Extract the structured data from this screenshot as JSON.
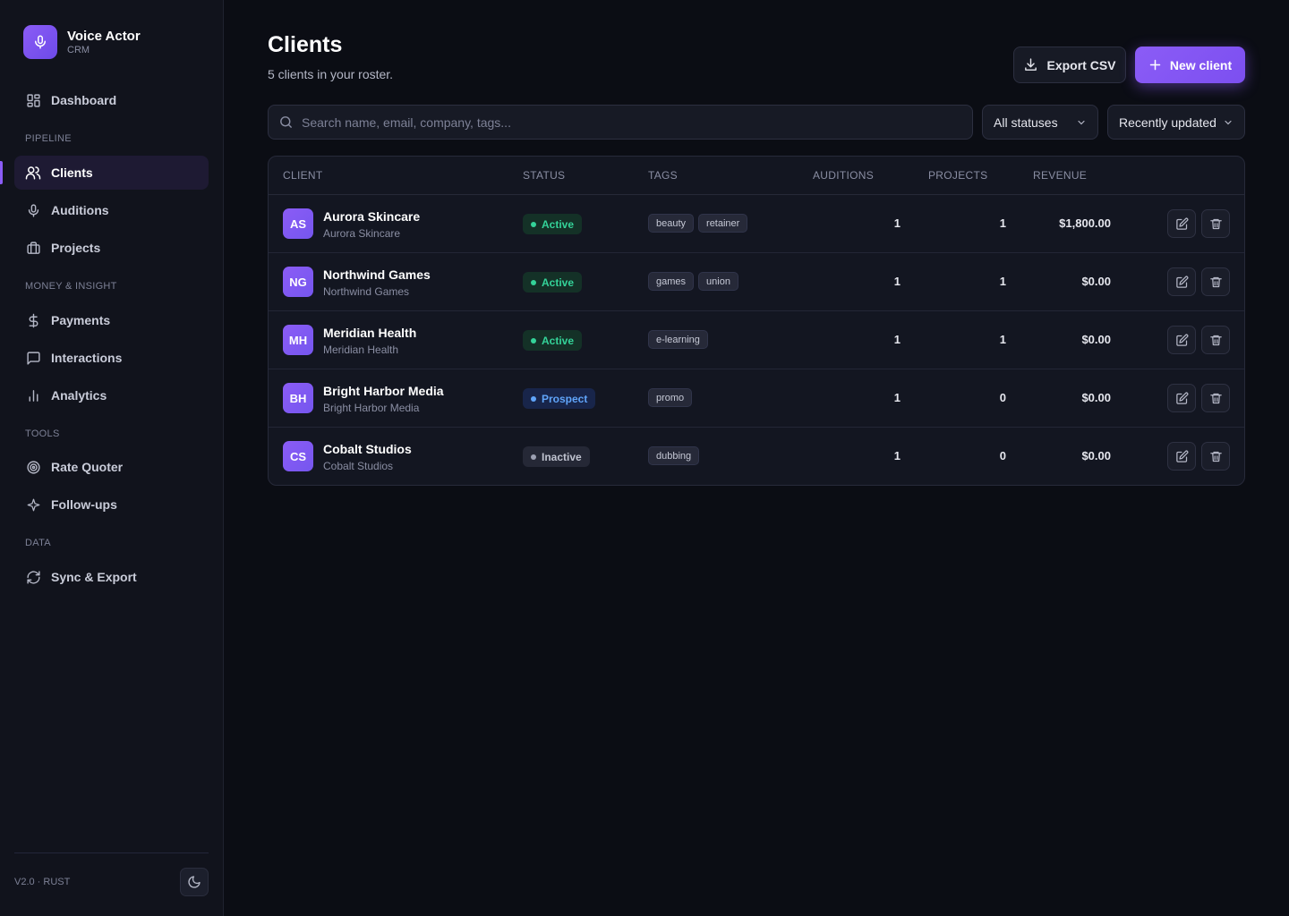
{
  "app": {
    "name": "Voice Actor",
    "subtitle": "CRM",
    "version": "V2.0 · RUST"
  },
  "sidebar": {
    "dashboard": "Dashboard",
    "sections": {
      "pipeline": "PIPELINE",
      "money": "MONEY & INSIGHT",
      "tools": "TOOLS",
      "data": "DATA"
    },
    "items": {
      "clients": "Clients",
      "auditions": "Auditions",
      "projects": "Projects",
      "payments": "Payments",
      "interactions": "Interactions",
      "analytics": "Analytics",
      "rate_quoter": "Rate Quoter",
      "follow_ups": "Follow-ups",
      "sync_export": "Sync & Export"
    },
    "active_item": "clients"
  },
  "page": {
    "title": "Clients",
    "subtitle": "5 clients in your roster.",
    "export_label": "Export CSV",
    "new_label": "New client"
  },
  "filters": {
    "search_placeholder": "Search name, email, company, tags...",
    "status_value": "All statuses",
    "sort_value": "Recently updated"
  },
  "table": {
    "headers": {
      "client": "CLIENT",
      "status": "STATUS",
      "tags": "TAGS",
      "auditions": "AUDITIONS",
      "projects": "PROJECTS",
      "revenue": "REVENUE"
    },
    "rows": [
      {
        "initials": "AS",
        "name": "Aurora Skincare",
        "company": "Aurora Skincare",
        "status": "Active",
        "status_kind": "active",
        "tags": [
          "beauty",
          "retainer"
        ],
        "auditions": "1",
        "projects": "1",
        "revenue": "$1,800.00"
      },
      {
        "initials": "NG",
        "name": "Northwind Games",
        "company": "Northwind Games",
        "status": "Active",
        "status_kind": "active",
        "tags": [
          "games",
          "union"
        ],
        "auditions": "1",
        "projects": "1",
        "revenue": "$0.00"
      },
      {
        "initials": "MH",
        "name": "Meridian Health",
        "company": "Meridian Health",
        "status": "Active",
        "status_kind": "active",
        "tags": [
          "e-learning"
        ],
        "auditions": "1",
        "projects": "1",
        "revenue": "$0.00"
      },
      {
        "initials": "BH",
        "name": "Bright Harbor Media",
        "company": "Bright Harbor Media",
        "status": "Prospect",
        "status_kind": "prospect",
        "tags": [
          "promo"
        ],
        "auditions": "1",
        "projects": "0",
        "revenue": "$0.00"
      },
      {
        "initials": "CS",
        "name": "Cobalt Studios",
        "company": "Cobalt Studios",
        "status": "Inactive",
        "status_kind": "inactive",
        "tags": [
          "dubbing"
        ],
        "auditions": "1",
        "projects": "0",
        "revenue": "$0.00"
      }
    ]
  },
  "colors": {
    "accent": "#8b5cf6",
    "background": "#0b0d14",
    "sidebar": "#11131c",
    "status_active": "#34d399",
    "status_prospect": "#60a5fa",
    "status_inactive": "#9ca0b2"
  },
  "icons": {
    "brand": "microphone-icon",
    "dashboard": "grid-icon",
    "clients": "users-icon",
    "auditions": "microphone-icon",
    "projects": "briefcase-icon",
    "payments": "dollar-icon",
    "interactions": "chat-icon",
    "analytics": "bar-chart-icon",
    "rate_quoter": "target-icon",
    "follow_ups": "sparkle-icon",
    "sync_export": "refresh-icon",
    "theme": "moon-icon",
    "export": "download-icon",
    "new": "plus-icon",
    "search": "search-icon",
    "edit": "edit-icon",
    "delete": "trash-icon"
  }
}
